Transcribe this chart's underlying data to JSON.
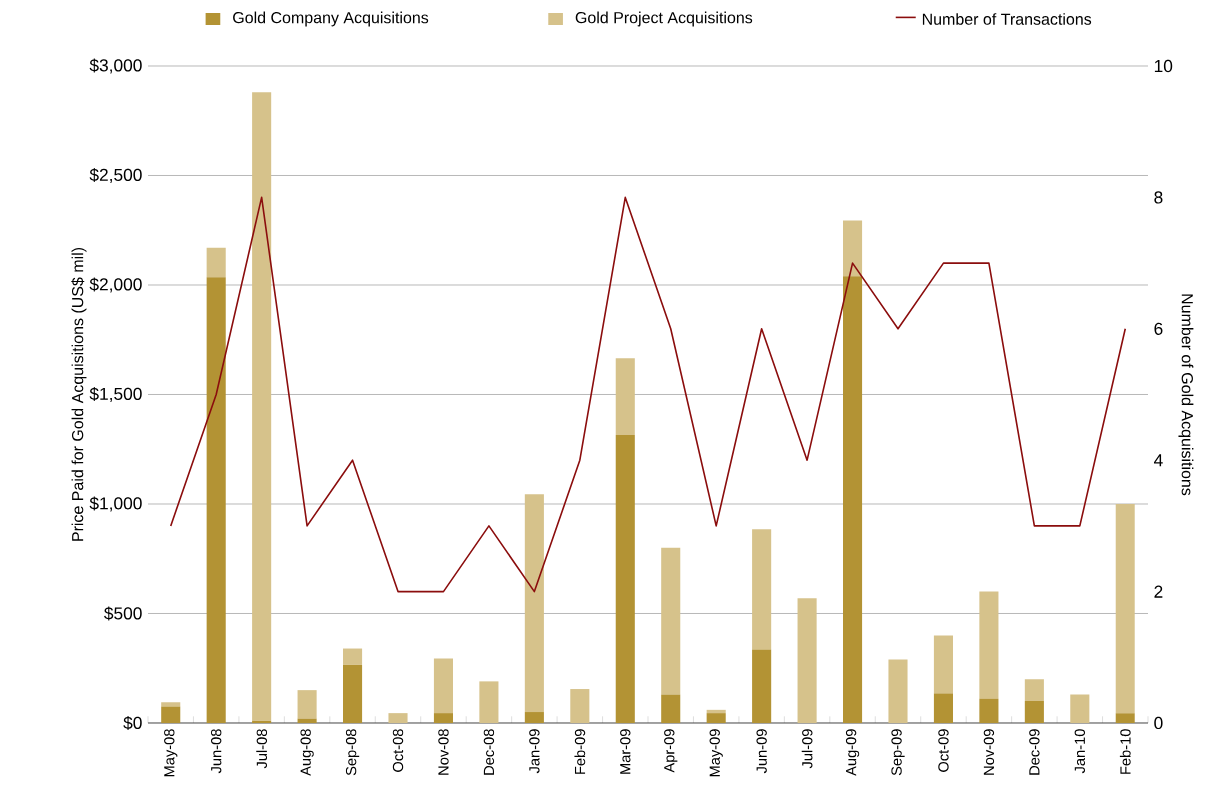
{
  "chart_data": {
    "type": "bar",
    "stacked": true,
    "ylabel": "Price Paid for Gold Acquisitions (US$ mil)",
    "y2label": "Number of Gold Acquisitions",
    "categories": [
      "May-08",
      "Jun-08",
      "Jul-08",
      "Aug-08",
      "Sep-08",
      "Oct-08",
      "Nov-08",
      "Dec-08",
      "Jan-09",
      "Feb-09",
      "Mar-09",
      "Apr-09",
      "May-09",
      "Jun-09",
      "Jul-09",
      "Aug-09",
      "Sep-09",
      "Oct-09",
      "Nov-09",
      "Dec-09",
      "Jan-10",
      "Feb-10"
    ],
    "series": [
      {
        "name": "Gold Company Acquisitions",
        "color": "#b39334",
        "values": [
          75,
          2035,
          10,
          20,
          265,
          0,
          45,
          0,
          50,
          0,
          1315,
          130,
          45,
          335,
          0,
          2040,
          0,
          135,
          110,
          100,
          0,
          45
        ]
      },
      {
        "name": "Gold Project Acquisitions",
        "color": "#d6c28b",
        "values": [
          20,
          135,
          2870,
          130,
          75,
          45,
          250,
          190,
          995,
          155,
          350,
          670,
          15,
          550,
          570,
          255,
          290,
          265,
          490,
          100,
          130,
          955
        ]
      },
      {
        "name": "Number of Transactions",
        "type": "line",
        "axis": "y2",
        "color": "#8b0d0d",
        "values": [
          3,
          5,
          8,
          3,
          4,
          2,
          2,
          3,
          2,
          4,
          8,
          6,
          3,
          6,
          4,
          7,
          6,
          7,
          7,
          3,
          3,
          6
        ]
      }
    ],
    "ylim": [
      0,
      3000
    ],
    "yticks": [
      {
        "value": 0,
        "label": "$0"
      },
      {
        "value": 500,
        "label": "$500"
      },
      {
        "value": 1000,
        "label": "$1,000"
      },
      {
        "value": 1500,
        "label": "$1,500"
      },
      {
        "value": 2000,
        "label": "$2,000"
      },
      {
        "value": 2500,
        "label": "$2,500"
      },
      {
        "value": 3000,
        "label": "$3,000"
      }
    ],
    "y2lim": [
      0,
      10
    ],
    "y2ticks": [
      0,
      2,
      4,
      6,
      8,
      10
    ],
    "grid": "y",
    "legend": "top",
    "marker": "none",
    "line_style": "solid"
  }
}
